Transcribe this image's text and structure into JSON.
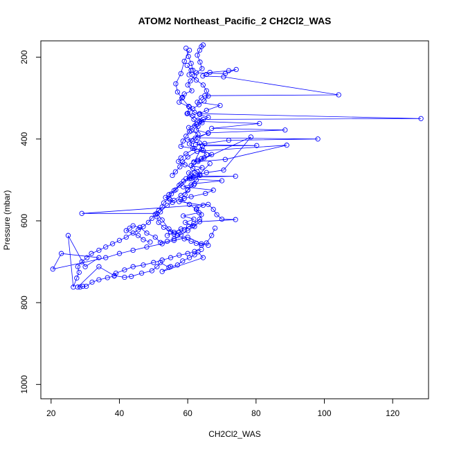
{
  "chart_data": {
    "type": "line",
    "title": "ATOM2 Northeast_Pacific_2 CH2Cl2_WAS",
    "xlabel": "CH2Cl2_WAS",
    "ylabel": "Pressure (mbar)",
    "xlim": [
      17,
      130.5
    ],
    "ylim": [
      1035,
      160
    ],
    "y_reversed": true,
    "x_ticks": [
      20,
      40,
      60,
      80,
      100,
      120
    ],
    "y_ticks": [
      200,
      400,
      600,
      800,
      1000
    ],
    "grid": false,
    "marker": "open-circle",
    "color": "#0000ff",
    "series": [
      {
        "x": [
          64.5,
          64.0,
          63.5,
          62.8,
          63.6,
          64.2,
          62.5,
          71.0,
          74.2,
          72.0,
          66.5,
          65.5,
          64.4,
          70.5,
          104.2,
          65.0,
          64.0,
          62.8,
          69.5,
          65.5,
          63.5,
          128.3,
          64.5,
          63.5,
          81.0,
          67.0,
          88.5,
          66.0,
          63.0,
          98.1,
          72.0,
          65.0,
          62.3,
          80.2,
          64.3,
          61.8,
          61.0,
          64.2,
          60.3,
          61.0,
          74.0,
          61.5,
          59.5,
          70.0,
          62.0,
          58.7,
          67.5,
          65.2,
          61.0,
          59.0,
          57.5,
          64.5,
          62.6,
          63.3,
          58.7,
          61.8,
          59.3,
          61.5,
          58.0,
          56.0,
          54.0
        ],
        "y": [
          170,
          174,
          183,
          195,
          212,
          228,
          238,
          240,
          230,
          233,
          237,
          242,
          246,
          248,
          292,
          294,
          299,
          310,
          318,
          330,
          338,
          350,
          352,
          357,
          362,
          374,
          378,
          385,
          397,
          400,
          403,
          411,
          414,
          416,
          417,
          458,
          465,
          470,
          483,
          490,
          491,
          493,
          497,
          502,
          509,
          517,
          525,
          533,
          541,
          545,
          553,
          562,
          570,
          580,
          588,
          596,
          604,
          612,
          620,
          628,
          636
        ]
      },
      {
        "x": [
          59.5,
          60.2,
          61.0,
          61.5,
          62.0,
          60.8,
          60.0,
          61.2,
          59.0,
          58.5,
          57.5,
          60.5,
          59.8,
          61.8,
          62.5,
          60.3,
          61.0,
          63.0,
          62.2,
          61.5,
          60.5,
          62.0,
          59.5,
          58.0,
          57.3,
          59.2,
          61.5,
          62.8,
          63.6,
          61.0
        ],
        "y": [
          178,
          198,
          215,
          232,
          245,
          258,
          268,
          282,
          290,
          298,
          310,
          322,
          338,
          352,
          364,
          372,
          380,
          388,
          398,
          405,
          412,
          423,
          436,
          446,
          455,
          463,
          472,
          480,
          489,
          497
        ]
      },
      {
        "x": [
          60.5,
          59.0,
          58.0,
          56.5,
          57.0,
          58.3,
          60.3,
          62.0,
          63.5,
          66.0,
          64.0,
          62.0,
          60.5,
          59.5,
          58.6,
          58.0,
          61.5,
          64.5,
          67.0,
          64.8,
          63.0,
          61.8,
          71.0,
          89.0,
          62.7,
          60.0,
          58.5,
          57.7,
          56.4,
          55.5
        ],
        "y": [
          183,
          210,
          240,
          265,
          285,
          300,
          320,
          335,
          340,
          347,
          356,
          368,
          382,
          393,
          405,
          418,
          423,
          428,
          438,
          446,
          452,
          456,
          450,
          415,
          430,
          444,
          456,
          468,
          480,
          489
        ]
      },
      {
        "x": [
          59.8,
          61.0,
          60.4,
          62.5,
          64.5,
          65.5,
          66.0,
          64.8,
          63.3,
          61.5,
          60.0,
          61.5,
          63.0,
          64.2,
          63.0,
          62.5,
          66.0,
          60.0,
          63.5,
          64.0,
          65.5,
          64.0,
          63.0,
          78.5,
          70.5,
          65.5,
          60.5,
          58.8,
          57.5,
          56.0,
          54.5,
          53.5,
          54.8,
          55.5
        ],
        "y": [
          220,
          232,
          243,
          256,
          268,
          282,
          295,
          307,
          316,
          326,
          337,
          343,
          354,
          360,
          369,
          378,
          386,
          402,
          410,
          426,
          438,
          448,
          455,
          395,
          476,
          482,
          493,
          503,
          513,
          526,
          536,
          543,
          548,
          555
        ]
      },
      {
        "x": [
          66.5,
          63.5,
          62.5,
          61.0,
          60.0,
          59.2,
          58.0,
          60.5,
          62.5,
          64.0,
          63.5,
          61.8,
          60.3,
          59.0,
          57.5,
          56.0,
          54.5,
          52.5,
          51.0,
          29.0,
          66.0,
          67.5,
          68.5,
          70.0,
          74.0,
          63.5,
          62.0,
          60.0,
          58.0,
          56.0,
          54.0,
          52.0,
          50.5,
          48.0,
          46.0,
          44.0,
          43.0,
          42.0,
          45.5,
          47.0,
          49.0
        ],
        "y": [
          460,
          486,
          500,
          512,
          524,
          536,
          548,
          560,
          572,
          585,
          596,
          606,
          614,
          622,
          628,
          632,
          620,
          598,
          582,
          582,
          560,
          572,
          585,
          596,
          597,
          602,
          614,
          624,
          634,
          644,
          650,
          653,
          640,
          630,
          616,
          612,
          618,
          624,
          636,
          646,
          652
        ]
      },
      {
        "x": [
          62.0,
          60.5,
          58.0,
          56.5,
          55.2,
          54.5,
          53.0,
          52.5,
          51.5,
          50.5,
          49.5,
          48.5,
          47.0,
          45.5,
          44.0,
          42.0,
          40.0,
          38.0,
          36.0,
          34.0,
          31.8,
          30.5,
          29.0,
          27.8,
          28.2,
          27.5,
          26.5,
          25.0,
          30.0,
          34.0,
          23.0,
          20.5,
          36.0,
          40.0,
          44.0,
          48.0,
          52.5,
          56.0,
          60.0,
          64.0,
          66.0
        ],
        "y": [
          482,
          497,
          510,
          524,
          534,
          545,
          556,
          566,
          575,
          584,
          594,
          604,
          614,
          622,
          630,
          640,
          648,
          656,
          664,
          672,
          680,
          690,
          700,
          712,
          726,
          740,
          762,
          636,
          712,
          690,
          680,
          718,
          690,
          680,
          672,
          664,
          656,
          648,
          640,
          656,
          660
        ]
      },
      {
        "x": [
          64.0,
          62.0,
          60.0,
          57.5,
          55.0,
          52.5,
          50.0,
          47.0,
          44.0,
          41.5,
          39.0,
          38.5,
          36.5,
          34.0,
          32.0,
          30.3,
          29.3,
          28.5,
          27.8,
          34.0,
          38.5,
          41.5,
          43.5,
          46.5,
          49.5,
          51.0,
          52.0,
          54.5,
          57.0,
          58.5,
          60.5,
          62.0,
          63.0,
          64.5,
          52.5,
          55.0
        ],
        "y": [
          670,
          675,
          680,
          684,
          690,
          696,
          702,
          708,
          712,
          720,
          728,
          735,
          739,
          744,
          750,
          760,
          760,
          762,
          762,
          712,
          734,
          738,
          736,
          728,
          722,
          712,
          702,
          714,
          708,
          698,
          690,
          683,
          676,
          690,
          724,
          712
        ]
      },
      {
        "x": [
          61.8,
          60.0,
          58.0,
          56.0,
          54.0,
          52.0,
          51.0,
          51.5,
          53.0,
          55.0,
          57.0,
          59.0,
          61.0,
          62.5,
          64.0,
          65.5,
          67.0,
          68.0
        ],
        "y": [
          512,
          525,
          538,
          550,
          562,
          578,
          590,
          604,
          616,
          627,
          636,
          644,
          650,
          655,
          660,
          654,
          636,
          618
        ]
      }
    ]
  }
}
